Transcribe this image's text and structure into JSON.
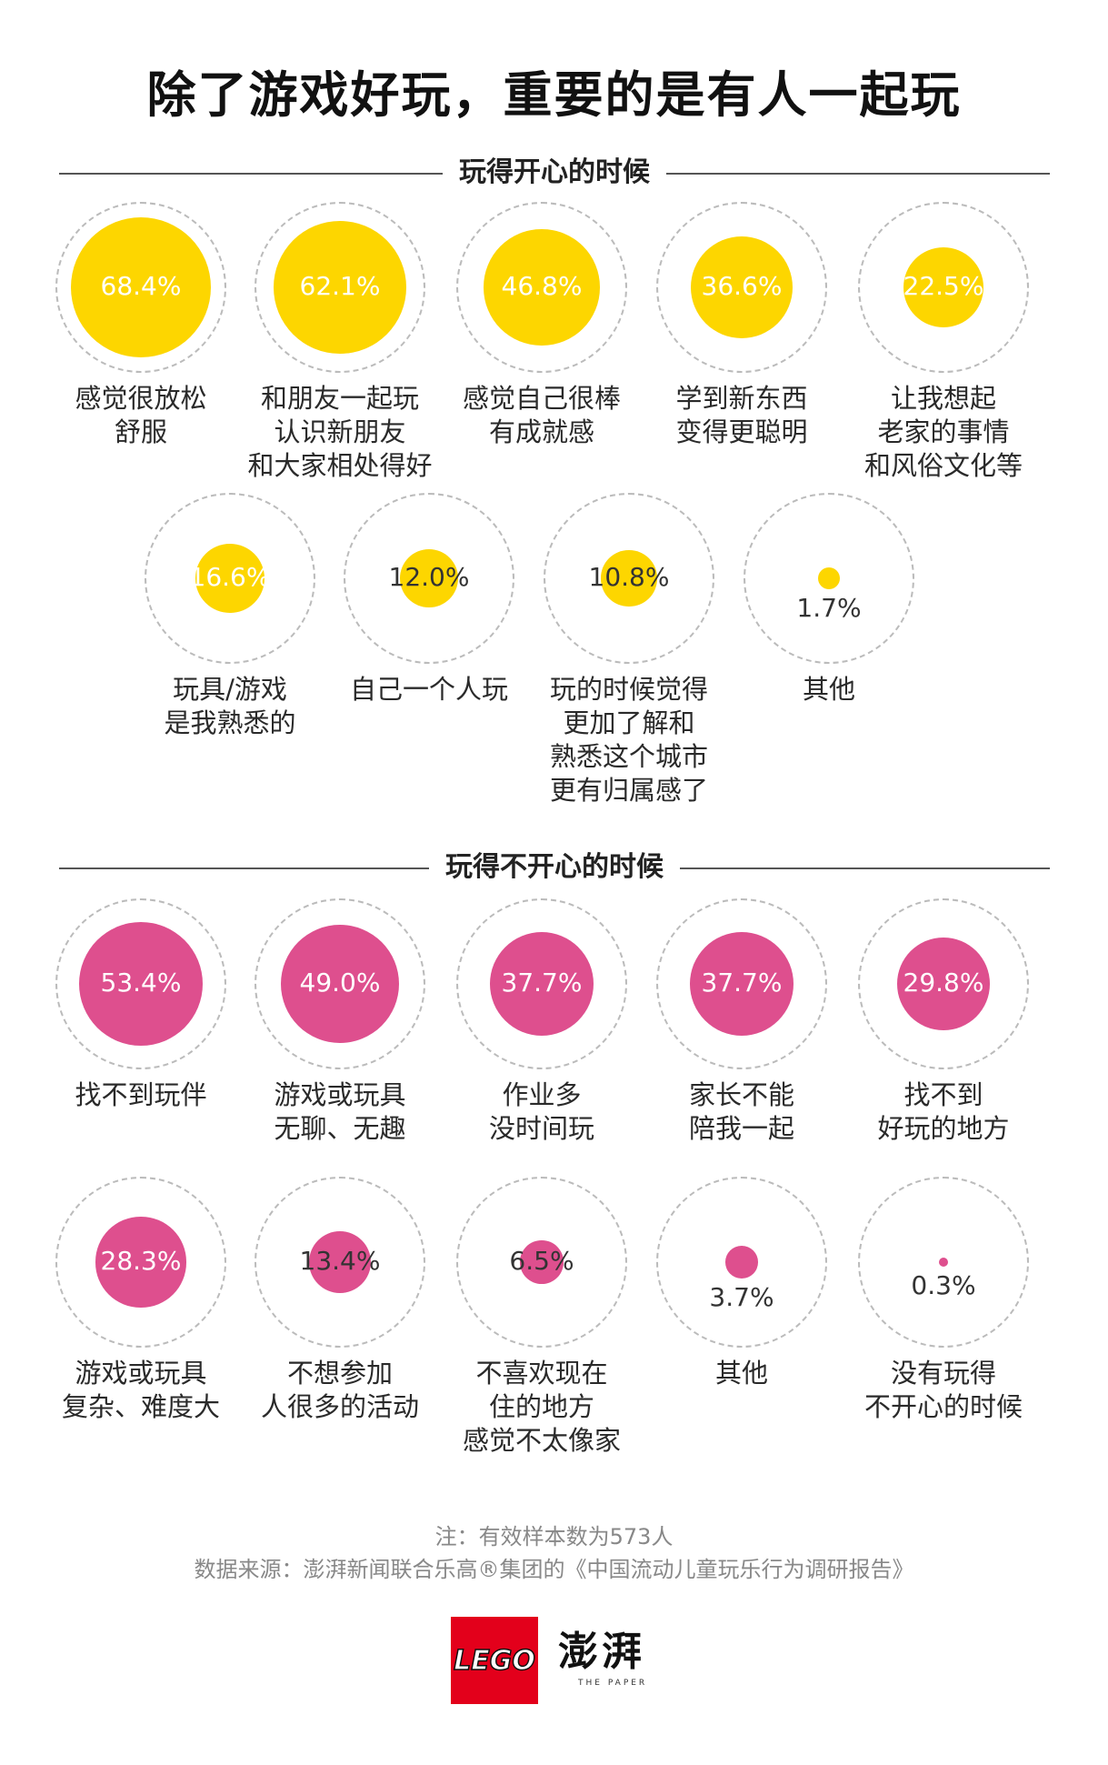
{
  "title": "除了游戏好玩，重要的是有人一起玩",
  "colors": {
    "happy": "#FDD600",
    "unhappy": "#DE4F8E",
    "ring": "#BBBBBB"
  },
  "chart_data": [
    {
      "type": "bubble",
      "title": "玩得开心的时候",
      "unit": "%",
      "categories": [
        [
          "感觉很放松",
          "舒服"
        ],
        [
          "和朋友一起玩",
          "认识新朋友",
          "和大家相处得好"
        ],
        [
          "感觉自己很棒",
          "有成就感"
        ],
        [
          "学到新东西",
          "变得更聪明"
        ],
        [
          "让我想起",
          "老家的事情",
          "和风俗文化等"
        ],
        [
          "玩具/游戏",
          "是我熟悉的"
        ],
        [
          "自己一个人玩"
        ],
        [
          "玩的时候觉得",
          "更加了解和",
          "熟悉这个城市",
          "更有归属感了"
        ],
        [
          "其他"
        ]
      ],
      "values": [
        68.4,
        62.1,
        46.8,
        36.6,
        22.5,
        16.6,
        12.0,
        10.8,
        1.7
      ],
      "labels": [
        "68.4%",
        "62.1%",
        "46.8%",
        "36.6%",
        "22.5%",
        "16.6%",
        "12.0%",
        "10.8%",
        "1.7%"
      ]
    },
    {
      "type": "bubble",
      "title": "玩得不开心的时候",
      "unit": "%",
      "categories": [
        [
          "找不到玩伴"
        ],
        [
          "游戏或玩具",
          "无聊、无趣"
        ],
        [
          "作业多",
          "没时间玩"
        ],
        [
          "家长不能",
          "陪我一起"
        ],
        [
          "找不到",
          "好玩的地方"
        ],
        [
          "游戏或玩具",
          "复杂、难度大"
        ],
        [
          "不想参加",
          "人很多的活动"
        ],
        [
          "不喜欢现在",
          "住的地方",
          "感觉不太像家"
        ],
        [
          "其他"
        ],
        [
          "没有玩得",
          "不开心的时候"
        ]
      ],
      "values": [
        53.4,
        49.0,
        37.7,
        37.7,
        29.8,
        28.3,
        13.4,
        6.5,
        3.7,
        0.3
      ],
      "labels": [
        "53.4%",
        "49.0%",
        "37.7%",
        "37.7%",
        "29.8%",
        "28.3%",
        "13.4%",
        "6.5%",
        "3.7%",
        "0.3%"
      ]
    }
  ],
  "footer": {
    "note": "注：有效样本数为573人",
    "source": "数据来源：澎湃新闻联合乐高®集团的《中国流动儿童玩乐行为调研报告》"
  },
  "logos": {
    "lego": "LEGO",
    "paper_cn": "澎湃",
    "paper_en": "THE PAPER"
  }
}
